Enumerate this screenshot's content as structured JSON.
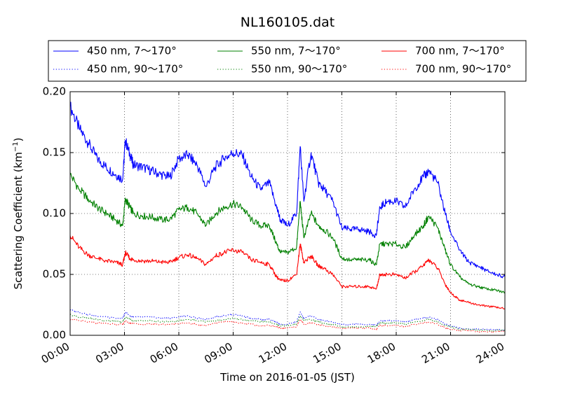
{
  "chart_data": {
    "type": "line",
    "title": "NL160105.dat",
    "xlabel": "Time on 2016-01-05 (JST)",
    "ylabel": "Scattering Coefficient (km",
    "ylabel_exp": "−1",
    "ylabel_close": ")",
    "xlim": [
      0,
      24
    ],
    "ylim": [
      0,
      0.2
    ],
    "grid": true,
    "legend_position": "top",
    "x_ticks": [
      0,
      3,
      6,
      9,
      12,
      15,
      18,
      21,
      24
    ],
    "x_tick_labels": [
      "00:00",
      "03:00",
      "06:00",
      "09:00",
      "12:00",
      "15:00",
      "18:00",
      "21:00",
      "24:00"
    ],
    "y_ticks": [
      0,
      0.05,
      0.1,
      0.15,
      0.2
    ],
    "y_tick_labels": [
      "0.00",
      "0.05",
      "0.10",
      "0.15",
      "0.20"
    ],
    "x": [
      0,
      0.5,
      1,
      1.5,
      2,
      2.5,
      2.9,
      3.05,
      3.3,
      3.5,
      4,
      4.5,
      5,
      5.5,
      6,
      6.5,
      7,
      7.5,
      8,
      8.5,
      9,
      9.5,
      10,
      10.5,
      11,
      11.4,
      11.6,
      12,
      12.5,
      12.7,
      12.9,
      13.3,
      13.7,
      14,
      14.5,
      15,
      15.5,
      16,
      16.5,
      16.9,
      17.1,
      17.5,
      18,
      18.5,
      19,
      19.5,
      19.8,
      20.3,
      20.7,
      21,
      21.5,
      22,
      22.5,
      23,
      23.5,
      24
    ],
    "series": [
      {
        "name": "450 nm, 7～170°",
        "color": "#0000ff",
        "dash": "solid",
        "values": [
          0.188,
          0.17,
          0.158,
          0.145,
          0.138,
          0.132,
          0.128,
          0.16,
          0.148,
          0.14,
          0.138,
          0.135,
          0.132,
          0.13,
          0.145,
          0.148,
          0.14,
          0.122,
          0.138,
          0.145,
          0.15,
          0.148,
          0.13,
          0.12,
          0.125,
          0.105,
          0.095,
          0.09,
          0.1,
          0.155,
          0.11,
          0.15,
          0.125,
          0.12,
          0.11,
          0.088,
          0.087,
          0.087,
          0.085,
          0.082,
          0.105,
          0.11,
          0.11,
          0.105,
          0.12,
          0.13,
          0.135,
          0.125,
          0.1,
          0.085,
          0.07,
          0.06,
          0.057,
          0.053,
          0.05,
          0.048
        ]
      },
      {
        "name": "550 nm, 7～170°",
        "color": "#008000",
        "dash": "solid",
        "values": [
          0.132,
          0.12,
          0.112,
          0.105,
          0.1,
          0.095,
          0.09,
          0.112,
          0.105,
          0.1,
          0.098,
          0.097,
          0.095,
          0.095,
          0.103,
          0.105,
          0.1,
          0.09,
          0.1,
          0.105,
          0.108,
          0.105,
          0.095,
          0.09,
          0.09,
          0.075,
          0.068,
          0.068,
          0.072,
          0.11,
          0.08,
          0.1,
          0.09,
          0.087,
          0.08,
          0.063,
          0.062,
          0.062,
          0.062,
          0.058,
          0.075,
          0.075,
          0.075,
          0.072,
          0.082,
          0.09,
          0.098,
          0.088,
          0.07,
          0.058,
          0.048,
          0.042,
          0.04,
          0.038,
          0.037,
          0.035
        ]
      },
      {
        "name": "700 nm, 7～170°",
        "color": "#ff0000",
        "dash": "solid",
        "values": [
          0.082,
          0.072,
          0.066,
          0.063,
          0.061,
          0.06,
          0.058,
          0.068,
          0.063,
          0.062,
          0.061,
          0.061,
          0.06,
          0.06,
          0.064,
          0.066,
          0.063,
          0.058,
          0.065,
          0.068,
          0.07,
          0.068,
          0.062,
          0.06,
          0.058,
          0.048,
          0.045,
          0.045,
          0.05,
          0.075,
          0.06,
          0.065,
          0.057,
          0.055,
          0.05,
          0.04,
          0.04,
          0.04,
          0.04,
          0.038,
          0.05,
          0.05,
          0.05,
          0.047,
          0.052,
          0.057,
          0.062,
          0.055,
          0.042,
          0.035,
          0.029,
          0.027,
          0.025,
          0.024,
          0.023,
          0.022
        ]
      },
      {
        "name": "450 nm, 90～170°",
        "color": "#0000ff",
        "dash": "dotted",
        "values": [
          0.021,
          0.019,
          0.017,
          0.016,
          0.015,
          0.014,
          0.014,
          0.019,
          0.016,
          0.015,
          0.015,
          0.015,
          0.014,
          0.014,
          0.015,
          0.016,
          0.014,
          0.013,
          0.015,
          0.016,
          0.017,
          0.016,
          0.014,
          0.013,
          0.013,
          0.011,
          0.009,
          0.009,
          0.011,
          0.019,
          0.014,
          0.016,
          0.013,
          0.012,
          0.011,
          0.009,
          0.009,
          0.009,
          0.009,
          0.008,
          0.012,
          0.012,
          0.012,
          0.011,
          0.013,
          0.014,
          0.015,
          0.013,
          0.009,
          0.008,
          0.006,
          0.005,
          0.005,
          0.005,
          0.005,
          0.004
        ]
      },
      {
        "name": "550 nm, 90～170°",
        "color": "#008000",
        "dash": "dotted",
        "values": [
          0.017,
          0.015,
          0.014,
          0.013,
          0.012,
          0.012,
          0.011,
          0.015,
          0.013,
          0.012,
          0.012,
          0.012,
          0.011,
          0.011,
          0.012,
          0.013,
          0.012,
          0.011,
          0.012,
          0.013,
          0.014,
          0.013,
          0.012,
          0.011,
          0.011,
          0.009,
          0.008,
          0.008,
          0.009,
          0.016,
          0.012,
          0.013,
          0.011,
          0.01,
          0.009,
          0.007,
          0.007,
          0.007,
          0.007,
          0.007,
          0.01,
          0.01,
          0.01,
          0.009,
          0.011,
          0.012,
          0.013,
          0.011,
          0.008,
          0.007,
          0.005,
          0.005,
          0.004,
          0.004,
          0.004,
          0.004
        ]
      },
      {
        "name": "700 nm, 90～170°",
        "color": "#ff0000",
        "dash": "dotted",
        "values": [
          0.013,
          0.012,
          0.011,
          0.01,
          0.01,
          0.009,
          0.009,
          0.012,
          0.01,
          0.01,
          0.009,
          0.009,
          0.009,
          0.009,
          0.01,
          0.01,
          0.009,
          0.008,
          0.01,
          0.011,
          0.011,
          0.01,
          0.009,
          0.008,
          0.008,
          0.007,
          0.006,
          0.006,
          0.007,
          0.013,
          0.009,
          0.01,
          0.009,
          0.008,
          0.007,
          0.006,
          0.006,
          0.006,
          0.006,
          0.005,
          0.008,
          0.008,
          0.008,
          0.007,
          0.009,
          0.01,
          0.011,
          0.009,
          0.006,
          0.005,
          0.004,
          0.004,
          0.003,
          0.003,
          0.003,
          0.003
        ]
      }
    ]
  }
}
